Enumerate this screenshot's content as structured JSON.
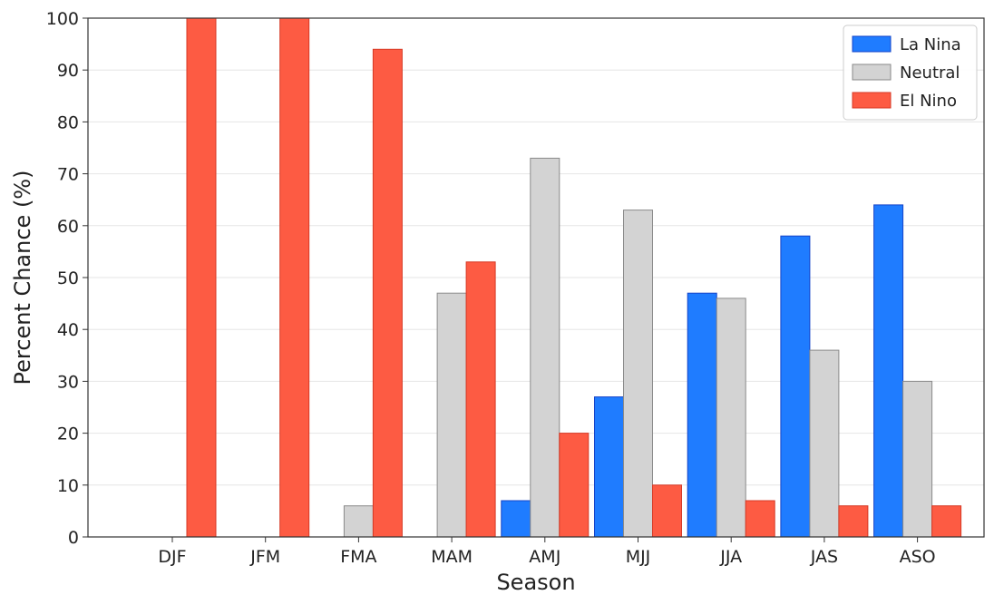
{
  "chart_data": {
    "type": "bar",
    "xlabel": "Season",
    "ylabel": "Percent Chance (%)",
    "ylim": [
      0,
      100
    ],
    "yticks": [
      0,
      10,
      20,
      30,
      40,
      50,
      60,
      70,
      80,
      90,
      100
    ],
    "categories": [
      "DJF",
      "JFM",
      "FMA",
      "MAM",
      "AMJ",
      "MJJ",
      "JJA",
      "JAS",
      "ASO"
    ],
    "grid": "horizontal",
    "legend_position": "top-right",
    "series": [
      {
        "name": "La Nina",
        "color": "#1f7cff",
        "edge": "#1544c8",
        "values": [
          0,
          0,
          0,
          0,
          7,
          27,
          47,
          58,
          64
        ]
      },
      {
        "name": "Neutral",
        "color": "#d3d3d3",
        "edge": "#8a8a8a",
        "values": [
          0,
          0,
          6,
          47,
          73,
          63,
          46,
          36,
          30
        ]
      },
      {
        "name": "El Nino",
        "color": "#fd5b43",
        "edge": "#d63a26",
        "values": [
          100,
          100,
          94,
          53,
          20,
          10,
          7,
          6,
          6
        ]
      }
    ]
  }
}
